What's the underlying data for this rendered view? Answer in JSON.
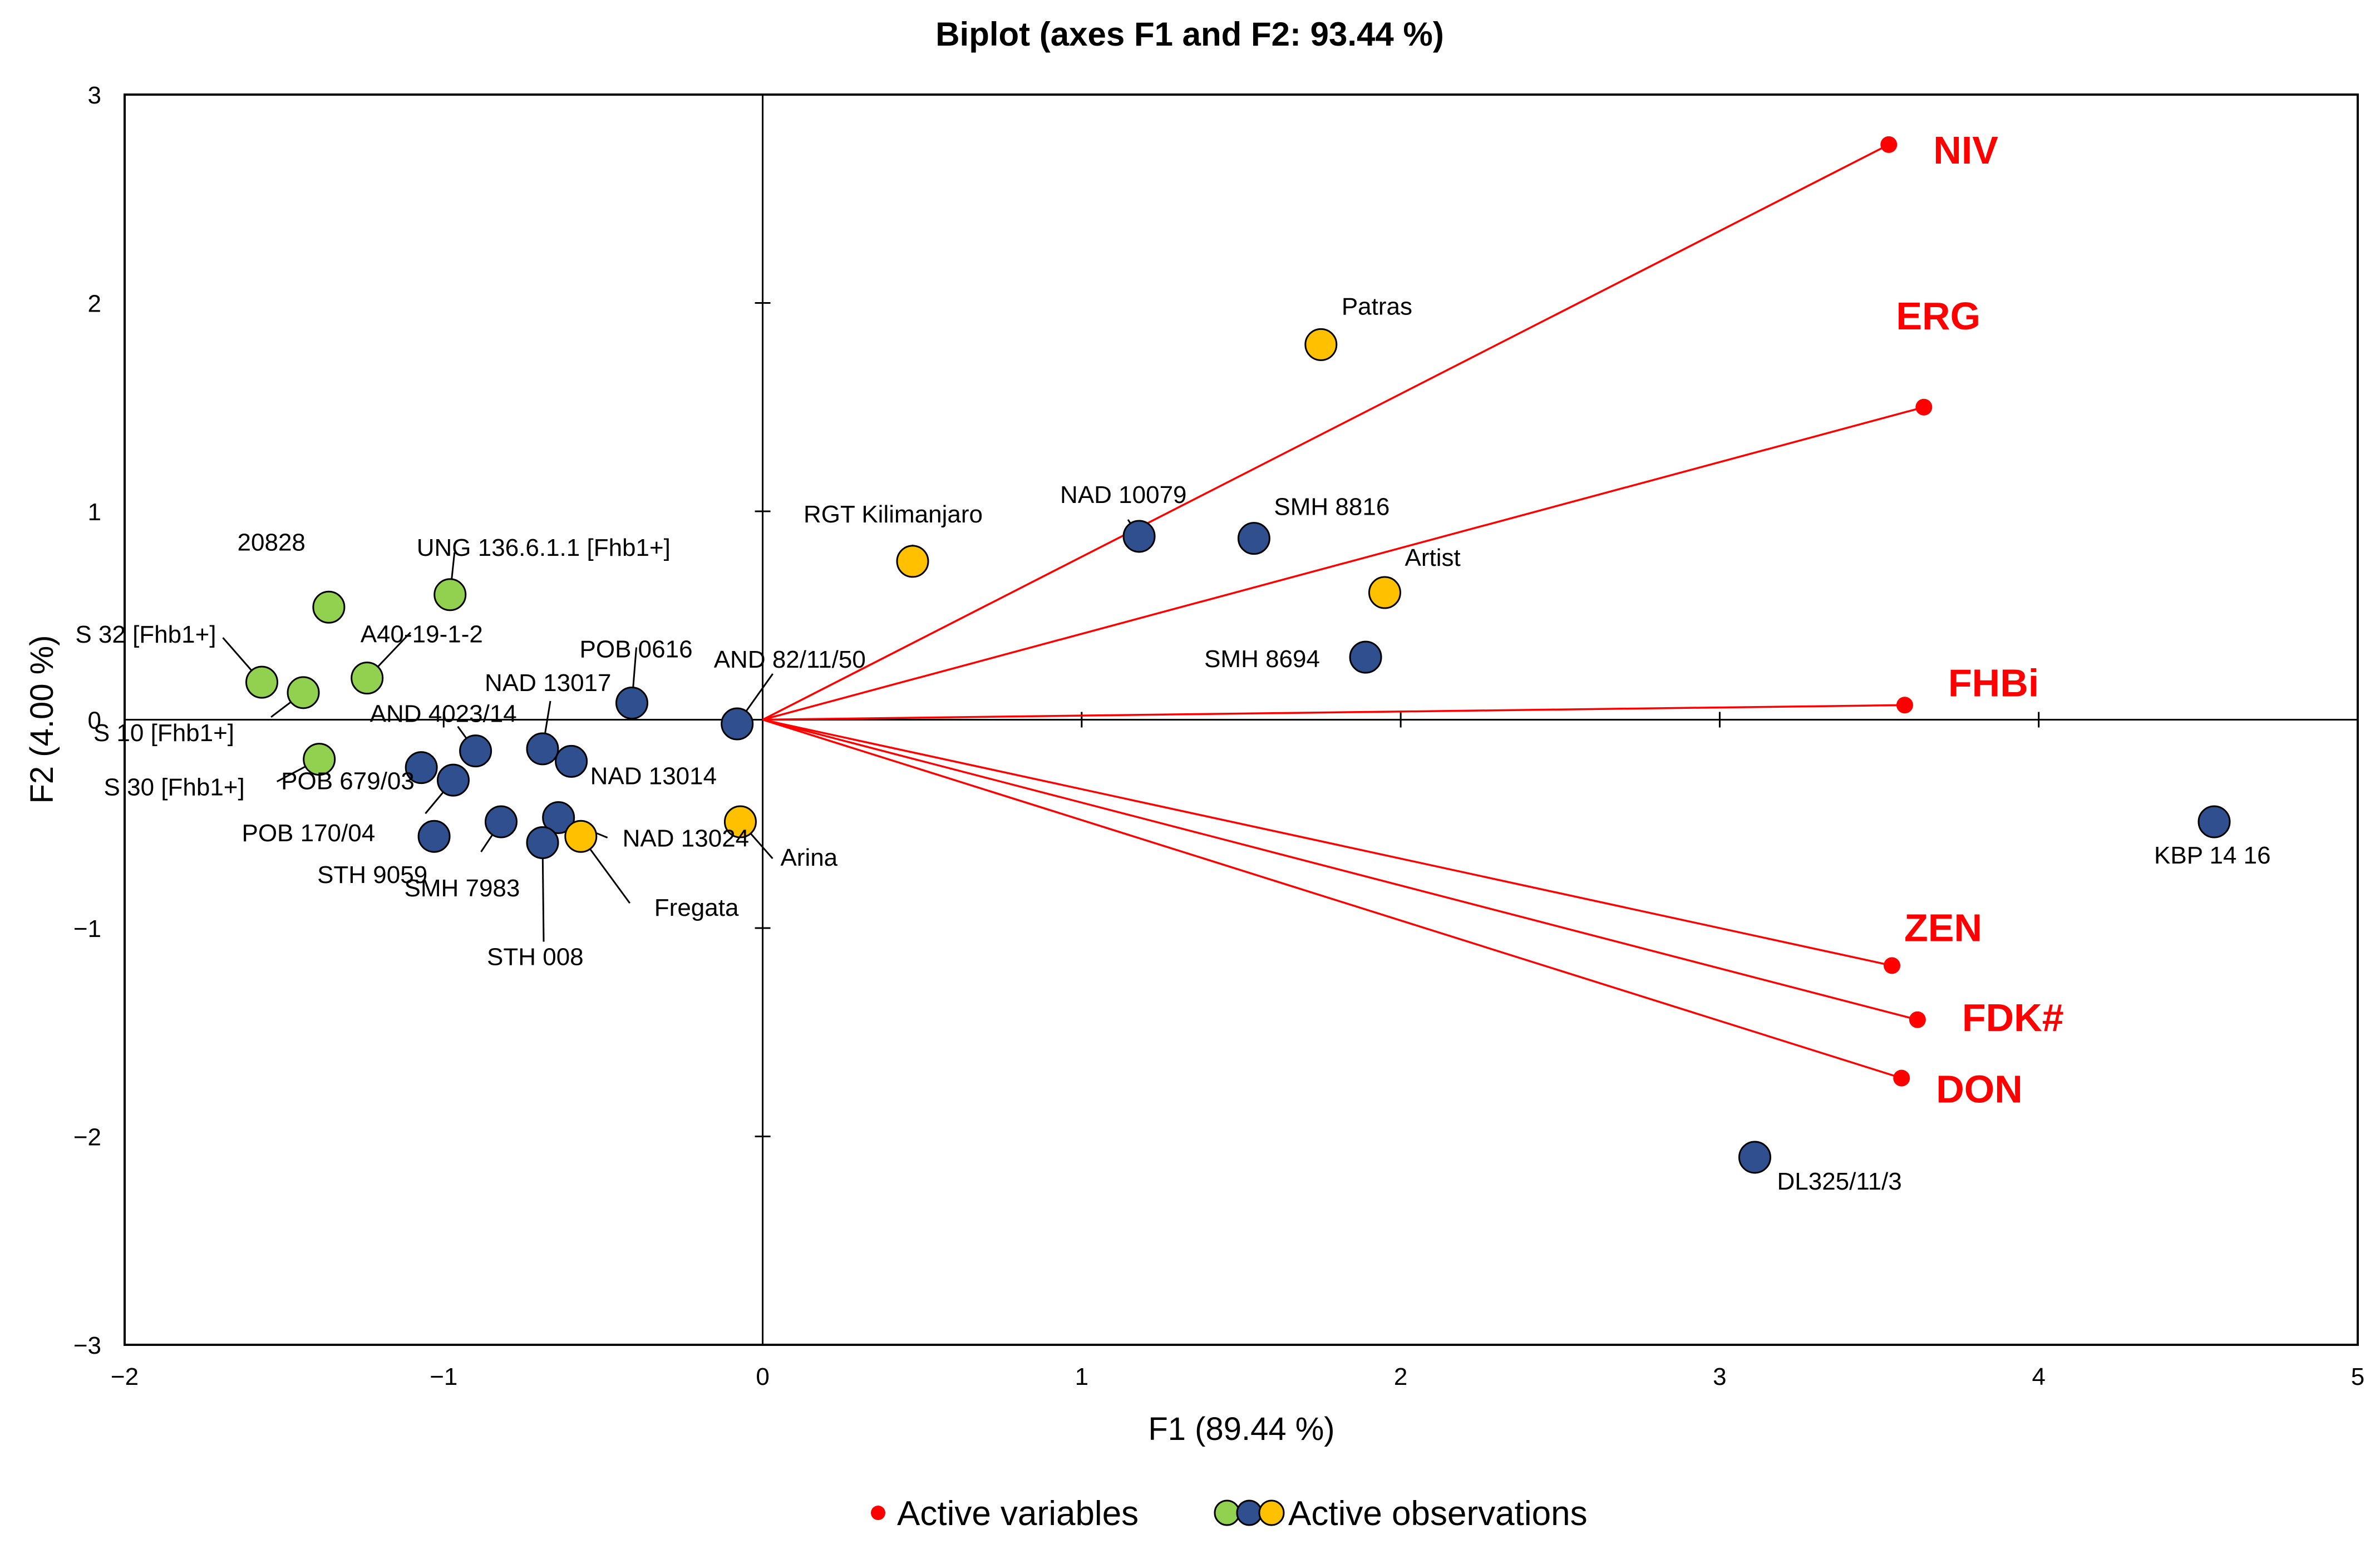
{
  "chart_data": {
    "type": "scatter",
    "title": "Biplot (axes F1 and F2: 93.44 %)",
    "xlabel": "F1 (89.44 %)",
    "ylabel": "F2 (4.00 %)",
    "xlim": [
      -2,
      5
    ],
    "ylim": [
      -3,
      3
    ],
    "xticks": [
      "−2",
      "−1",
      "0",
      "1",
      "2",
      "3",
      "4",
      "5"
    ],
    "yticks": [
      "−3",
      "−2",
      "−1",
      "0",
      "1",
      "2",
      "3"
    ],
    "colors": {
      "variable": "#ff0000",
      "green": "#92d050",
      "blue": "#2f4f8f",
      "orange": "#ffc000"
    },
    "variables": [
      {
        "name": "NIV",
        "x": 3.53,
        "y": 2.76
      },
      {
        "name": "ERG",
        "x": 3.64,
        "y": 1.5
      },
      {
        "name": "FHBi",
        "x": 3.58,
        "y": 0.07
      },
      {
        "name": "ZEN",
        "x": 3.54,
        "y": -1.18
      },
      {
        "name": "FDK#",
        "x": 3.62,
        "y": -1.44
      },
      {
        "name": "DON",
        "x": 3.57,
        "y": -1.72
      }
    ],
    "observations": [
      {
        "name": "20828",
        "group": "green",
        "x": -1.36,
        "y": 0.54
      },
      {
        "name": "UNG 136.6.1.1 [Fhb1+]",
        "group": "green",
        "x": -0.98,
        "y": 0.6
      },
      {
        "name": "S 32 [Fhb1+]",
        "group": "green",
        "x": -1.57,
        "y": 0.18
      },
      {
        "name": "A40-19-1-2",
        "group": "green",
        "x": -1.24,
        "y": 0.2
      },
      {
        "name": "S 10 [Fhb1+]",
        "group": "green",
        "x": -1.44,
        "y": 0.13
      },
      {
        "name": "S 30 [Fhb1+]",
        "group": "green",
        "x": -1.39,
        "y": -0.19
      },
      {
        "name": "POB 0616",
        "group": "blue",
        "x": -0.41,
        "y": 0.08
      },
      {
        "name": "AND 82/11/50",
        "group": "blue",
        "x": -0.08,
        "y": -0.02
      },
      {
        "name": "NAD 13017",
        "group": "blue",
        "x": -0.69,
        "y": -0.14
      },
      {
        "name": "NAD 13014",
        "group": "blue",
        "x": -0.6,
        "y": -0.2
      },
      {
        "name": "AND 4023/14",
        "group": "blue",
        "x": -0.9,
        "y": -0.15
      },
      {
        "name": "POB 679/03",
        "group": "blue",
        "x": -1.07,
        "y": -0.23
      },
      {
        "name": "POB 170/04",
        "group": "blue",
        "x": -0.97,
        "y": -0.29
      },
      {
        "name": "NAD 13024",
        "group": "blue",
        "x": -0.64,
        "y": -0.47
      },
      {
        "name": "STH 9059",
        "group": "blue",
        "x": -1.03,
        "y": -0.56
      },
      {
        "name": "SMH 7983",
        "group": "blue",
        "x": -0.82,
        "y": -0.49
      },
      {
        "name": "STH 008",
        "group": "blue",
        "x": -0.69,
        "y": -0.59
      },
      {
        "name": "NAD 10079",
        "group": "blue",
        "x": 1.18,
        "y": 0.88
      },
      {
        "name": "SMH 8816",
        "group": "blue",
        "x": 1.54,
        "y": 0.87
      },
      {
        "name": "SMH 8694",
        "group": "blue",
        "x": 1.89,
        "y": 0.3
      },
      {
        "name": "KBP 14 16",
        "group": "blue",
        "x": 4.55,
        "y": -0.49
      },
      {
        "name": "DL325/11/3",
        "group": "blue",
        "x": 3.11,
        "y": -2.1
      },
      {
        "name": "Fregata",
        "group": "orange",
        "x": -0.57,
        "y": -0.56
      },
      {
        "name": "Arina",
        "group": "orange",
        "x": -0.07,
        "y": -0.49
      },
      {
        "name": "RGT Kilimanjaro",
        "group": "orange",
        "x": 0.47,
        "y": 0.76
      },
      {
        "name": "Patras",
        "group": "orange",
        "x": 1.75,
        "y": 1.8
      },
      {
        "name": "Artist",
        "group": "orange",
        "x": 1.95,
        "y": 0.61
      }
    ],
    "legend": {
      "position": "bottom",
      "variables_label": "Active variables",
      "observations_label": "Active observations"
    }
  }
}
